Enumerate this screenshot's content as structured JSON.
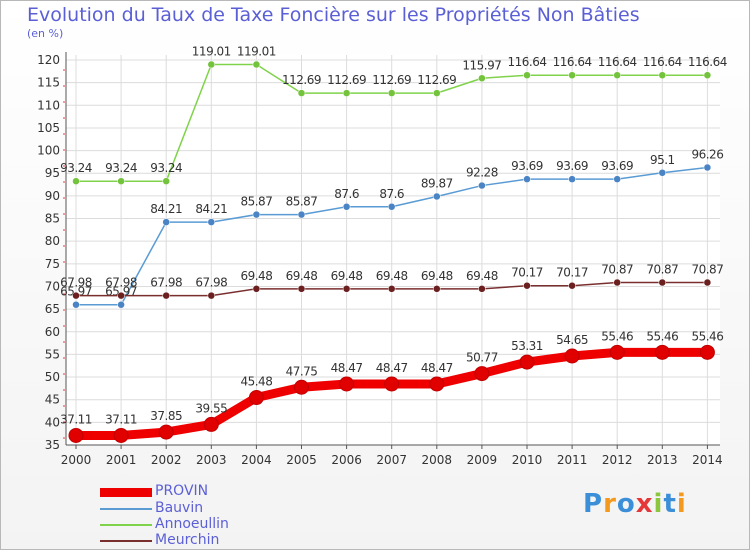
{
  "title": "Evolution du Taux de Taxe Foncière sur les Propriétés Non Bâties",
  "unit_label": "(en %)",
  "logo_text": "Proxiti",
  "chart_data": {
    "type": "line",
    "title": "Evolution du Taux de Taxe Foncière sur les Propriétés Non Bâties",
    "xlabel": "",
    "ylabel": "(en %)",
    "ylim": [
      35,
      120
    ],
    "yticks": [
      35,
      40,
      45,
      50,
      55,
      60,
      65,
      70,
      75,
      80,
      85,
      90,
      95,
      100,
      105,
      110,
      115,
      120
    ],
    "x": [
      "2000",
      "2001",
      "2002",
      "2003",
      "2004",
      "2005",
      "2006",
      "2007",
      "2008",
      "2009",
      "2010",
      "2011",
      "2012",
      "2013",
      "2014"
    ],
    "legend_position": "bottom-left",
    "series": [
      {
        "name": "Annoeullin",
        "color": "#7fd34a",
        "marker": "#74c33c",
        "values": [
          93.24,
          93.24,
          93.24,
          119.01,
          119.01,
          112.69,
          112.69,
          112.69,
          112.69,
          115.97,
          116.64,
          116.64,
          116.64,
          116.64,
          116.64
        ],
        "labels": [
          "93.24",
          "93.24",
          "93.24",
          "119.01",
          "119.01",
          "112.69",
          "112.69",
          "112.69",
          "112.69",
          "115.97",
          "116.64",
          "116.64",
          "116.64",
          "116.64",
          "116.64"
        ]
      },
      {
        "name": "Bauvin",
        "color": "#5a9bd4",
        "marker": "#4a84c4",
        "values": [
          65.97,
          65.97,
          84.21,
          84.21,
          85.87,
          85.87,
          87.6,
          87.6,
          89.87,
          92.28,
          93.69,
          93.69,
          93.69,
          95.1,
          96.26
        ],
        "labels": [
          "65.97",
          "65.97",
          "84.21",
          "84.21",
          "85.87",
          "85.87",
          "87.6",
          "87.6",
          "89.87",
          "92.28",
          "93.69",
          "93.69",
          "93.69",
          "95.1",
          "96.26"
        ]
      },
      {
        "name": "Meurchin",
        "color": "#7a2f2f",
        "marker": "#6b1f1f",
        "values": [
          67.98,
          67.98,
          67.98,
          67.98,
          69.48,
          69.48,
          69.48,
          69.48,
          69.48,
          69.48,
          70.17,
          70.17,
          70.87,
          70.87,
          70.87
        ],
        "labels": [
          "67.98",
          "67.98",
          "67.98",
          "67.98",
          "69.48",
          "69.48",
          "69.48",
          "69.48",
          "69.48",
          "69.48",
          "70.17",
          "70.17",
          "70.87",
          "70.87",
          "70.87"
        ]
      },
      {
        "name": "PROVIN",
        "color": "#ee0000",
        "marker": "#e00000",
        "values": [
          37.11,
          37.11,
          37.85,
          39.55,
          45.48,
          47.75,
          48.47,
          48.47,
          48.47,
          50.77,
          53.31,
          54.65,
          55.46,
          55.46,
          55.46
        ],
        "labels": [
          "37.11",
          "37.11",
          "37.85",
          "39.55",
          "45.48",
          "47.75",
          "48.47",
          "48.47",
          "48.47",
          "50.77",
          "53.31",
          "54.65",
          "55.46",
          "55.46",
          "55.46"
        ]
      }
    ],
    "legend": [
      "PROVIN",
      "Bauvin",
      "Annoeullin",
      "Meurchin"
    ]
  }
}
